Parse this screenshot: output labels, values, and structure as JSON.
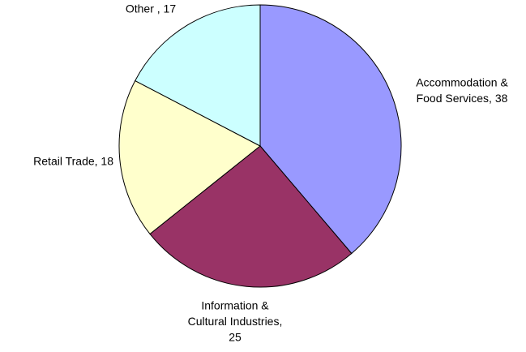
{
  "chart_data": {
    "type": "pie",
    "labels": [
      [
        "Accommodation &",
        "Food Services, 38"
      ],
      [
        "Information &",
        "Cultural Industries,",
        "25"
      ],
      [
        "Retail Trade, 18"
      ],
      [
        "Other , 17"
      ]
    ],
    "values": [
      38,
      25,
      18,
      17
    ],
    "colors": [
      "#9999ff",
      "#993366",
      "#ffffcc",
      "#ccffff"
    ]
  }
}
